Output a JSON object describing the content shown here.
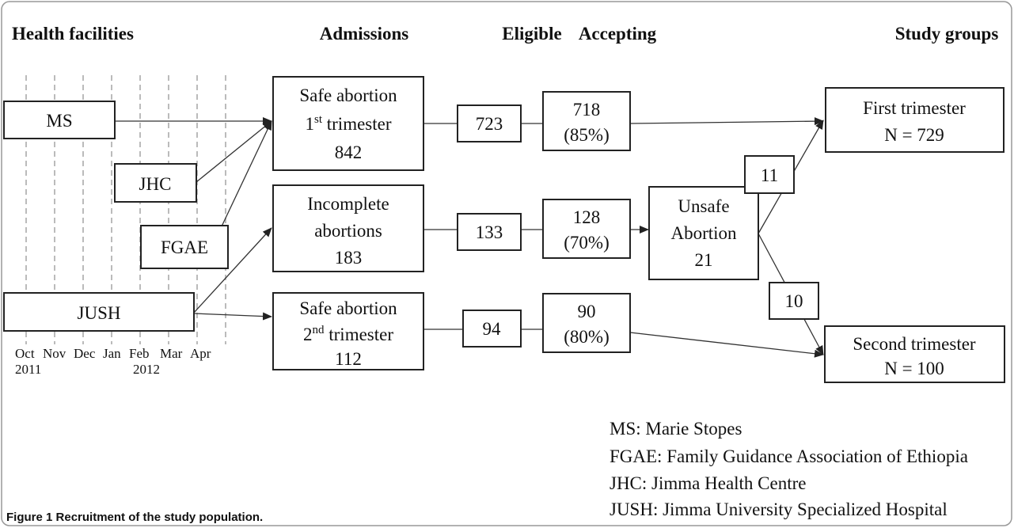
{
  "headers": [
    "Health facilities",
    "Admissions",
    "Eligible",
    "Accepting",
    "Study groups"
  ],
  "timeline": {
    "months": [
      "Oct",
      "Nov",
      "Dec",
      "Jan",
      "Feb",
      "Mar",
      "Apr"
    ],
    "years": [
      "2011",
      "2012"
    ]
  },
  "facilities": {
    "ms": "MS",
    "jhc": "JHC",
    "fgae": "FGAE",
    "jush": "JUSH"
  },
  "admissions": {
    "safe_first": {
      "line1": "Safe abortion",
      "ordinal": "1",
      "suffix": "st",
      "rest": " trimester",
      "count": "842"
    },
    "incomplete": {
      "line1": "Incomplete",
      "line2": "abortions",
      "count": "183"
    },
    "safe_second": {
      "line1": "Safe abortion",
      "ordinal": "2",
      "suffix": "nd",
      "rest": " trimester",
      "count": "112"
    }
  },
  "eligible": [
    "723",
    "133",
    "94"
  ],
  "accepting": [
    {
      "count": "718",
      "percent": "(85%)"
    },
    {
      "count": "128",
      "percent": "(70%)"
    },
    {
      "count": "90",
      "percent": "(80%)"
    }
  ],
  "unsafe": {
    "line1": "Unsafe",
    "line2": "Abortion",
    "count": "21"
  },
  "split": [
    "11",
    "10"
  ],
  "groups": [
    {
      "name": "First trimester",
      "n": "N = 729"
    },
    {
      "name": "Second trimester",
      "n": "N = 100"
    }
  ],
  "legend": [
    "MS: Marie Stopes",
    "FGAE: Family Guidance Association of Ethiopia",
    "JHC: Jimma Health Centre",
    "JUSH: Jimma University Specialized Hospital"
  ],
  "caption": {
    "label": "Figure 1",
    "text": " Recruitment of the study population."
  }
}
